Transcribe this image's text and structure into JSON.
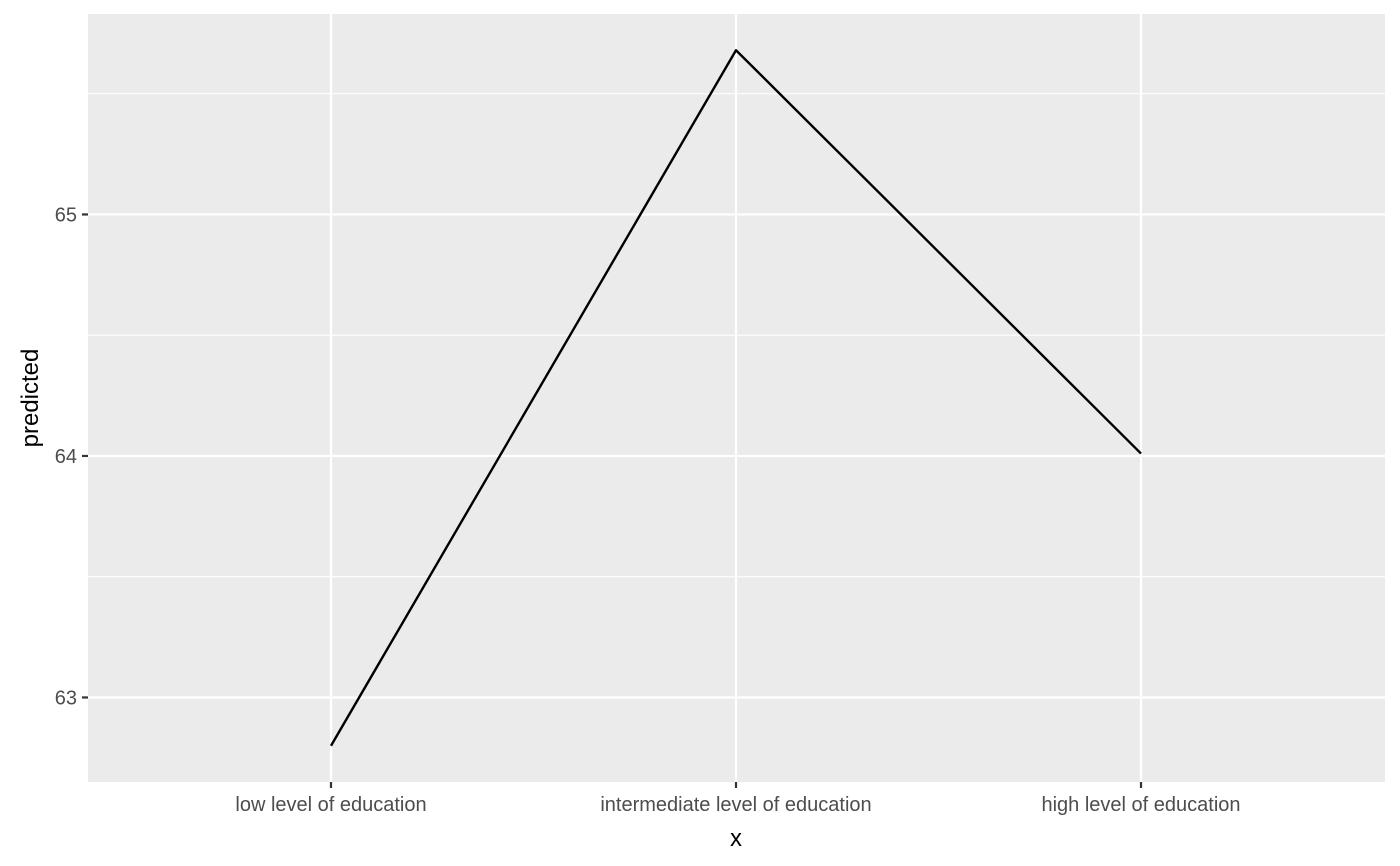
{
  "chart_data": {
    "type": "line",
    "categories": [
      "low level of education",
      "intermediate level of education",
      "high level of education"
    ],
    "series": [
      {
        "values": [
          62.8,
          65.68,
          64.01
        ],
        "color": "#000000"
      }
    ],
    "xlabel": "x",
    "ylabel": "predicted",
    "yticks": [
      63,
      64,
      65
    ],
    "ylim": [
      62.65,
      65.83
    ],
    "grid": true,
    "panel_background": "#ebebeb",
    "grid_color": "#ffffff"
  }
}
